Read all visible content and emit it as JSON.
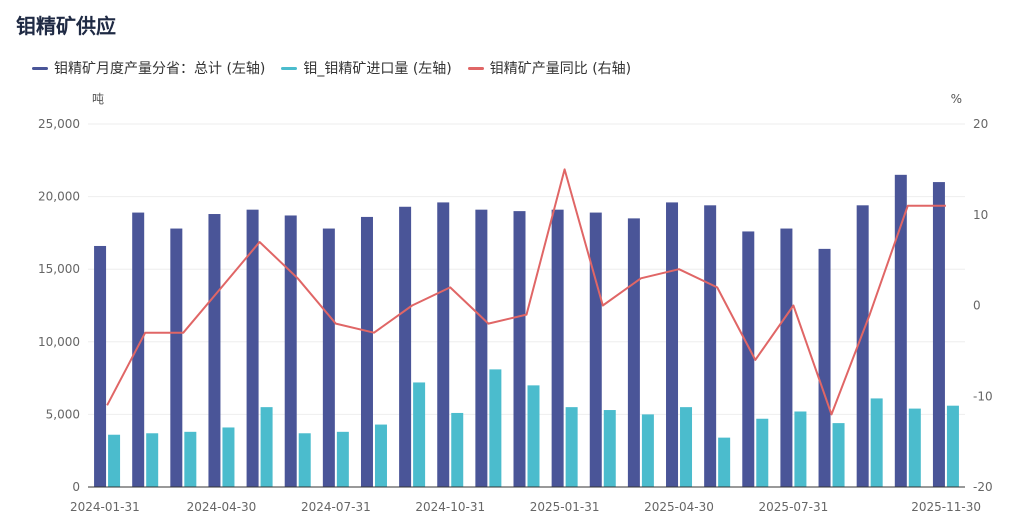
{
  "title": "钼精矿供应",
  "legend": [
    {
      "label": "钼精矿月度产量分省：总计 (左轴)",
      "color": "#4a5598"
    },
    {
      "label": "钼_钼精矿进口量 (左轴)",
      "color": "#4bbccd"
    },
    {
      "label": "钼精矿产量同比 (右轴)",
      "color": "#e06666"
    }
  ],
  "colors": {
    "production": "#4a5598",
    "imports": "#4bbccd",
    "yoy": "#e06666",
    "grid": "#eeeeee",
    "axis": "#333333"
  },
  "chart_data": {
    "type": "bar",
    "categories": [
      "2024-01-31",
      "2024-02-29",
      "2024-03-31",
      "2024-04-30",
      "2024-05-31",
      "2024-06-30",
      "2024-07-31",
      "2024-08-31",
      "2024-09-30",
      "2024-10-31",
      "2024-11-30",
      "2024-12-31",
      "2025-01-31",
      "2025-02-28",
      "2025-03-31",
      "2025-04-30",
      "2025-05-31",
      "2025-06-30",
      "2025-07-31",
      "2025-08-31",
      "2025-09-30",
      "2025-10-31",
      "2025-11-30"
    ],
    "x_tick_labels": [
      "2024-01-31",
      "2024-04-30",
      "2024-07-31",
      "2024-10-31",
      "2025-01-31",
      "2025-04-30",
      "2025-07-31",
      "2025-11-30"
    ],
    "left_axis": {
      "unit": "吨",
      "min": 0,
      "max": 25000,
      "ticks": [
        "0",
        "5,000",
        "10,000",
        "15,000",
        "20,000",
        "25,000"
      ]
    },
    "right_axis": {
      "unit": "%",
      "min": -20,
      "max": 20,
      "ticks": [
        "-20",
        "-10",
        "0",
        "10",
        "20"
      ]
    },
    "series": [
      {
        "name": "钼精矿月度产量分省：总计 (左轴)",
        "type": "bar",
        "axis": "left",
        "values": [
          16600,
          18900,
          17800,
          18800,
          19100,
          18700,
          17800,
          18600,
          19300,
          19600,
          19100,
          19000,
          19100,
          18900,
          18500,
          19600,
          19400,
          17600,
          17800,
          16400,
          19400,
          21500,
          21000
        ]
      },
      {
        "name": "钼_钼精矿进口量 (左轴)",
        "type": "bar",
        "axis": "left",
        "values": [
          3600,
          3700,
          3800,
          4100,
          5500,
          3700,
          3800,
          4300,
          7200,
          5100,
          8100,
          7000,
          5500,
          5300,
          5000,
          5500,
          3400,
          4700,
          5200,
          4400,
          6100,
          5400,
          5600
        ]
      },
      {
        "name": "钼精矿产量同比 (右轴)",
        "type": "line",
        "axis": "right",
        "values": [
          -11,
          -3,
          -3,
          2,
          7,
          3,
          -2,
          -3,
          0,
          2,
          -2,
          -1,
          15,
          0,
          3,
          4,
          2,
          -6,
          0,
          -12,
          -1,
          11,
          11
        ]
      }
    ]
  }
}
